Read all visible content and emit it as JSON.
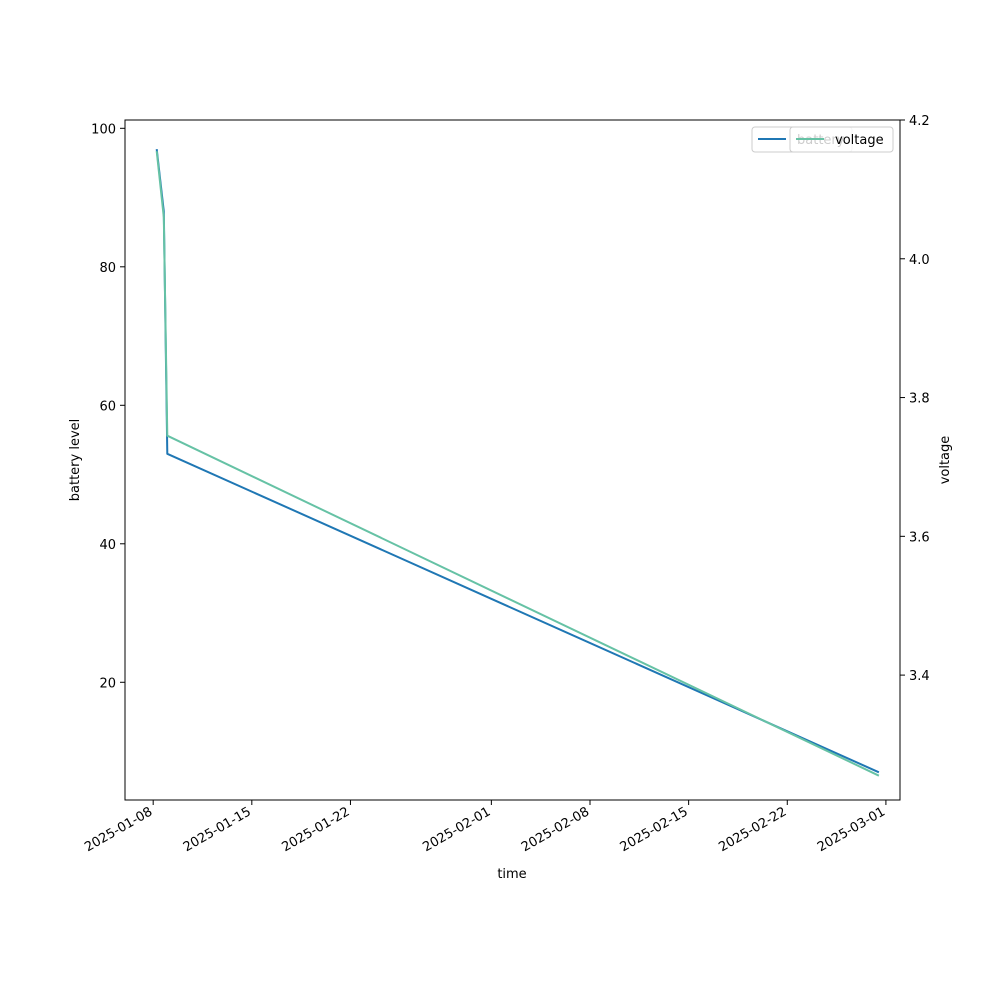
{
  "chart_data": {
    "type": "line",
    "xlabel": "time",
    "x": [
      "2025-01-08T06:00",
      "2025-01-08T18:00",
      "2025-01-09T00:00",
      "2025-02-28T12:00"
    ],
    "xticks": [
      "2025-01-08",
      "2025-01-15",
      "2025-01-22",
      "2025-02-01",
      "2025-02-08",
      "2025-02-15",
      "2025-02-22",
      "2025-03-01"
    ],
    "xlim": [
      "2025-01-06T00:00",
      "2025-03-02T00:00"
    ],
    "left_axis": {
      "label": "battery level",
      "ylim": [
        3.0,
        101.2
      ],
      "ticks": [
        20,
        40,
        60,
        80,
        100
      ]
    },
    "right_axis": {
      "label": "voltage",
      "ylim": [
        3.22,
        4.2
      ],
      "ticks": [
        3.4,
        3.6,
        3.8,
        4.0,
        4.2
      ]
    },
    "series": [
      {
        "name": "battery",
        "axis": "left",
        "color": "#1f77b4",
        "values": [
          97,
          88,
          53,
          7
        ]
      },
      {
        "name": "voltage",
        "axis": "right",
        "color": "#66c2a5",
        "values": [
          4.155,
          4.06,
          3.745,
          3.255
        ]
      }
    ],
    "legend": {
      "placement": "top-right",
      "entries": [
        "battery",
        "voltage"
      ]
    },
    "grid": false
  }
}
